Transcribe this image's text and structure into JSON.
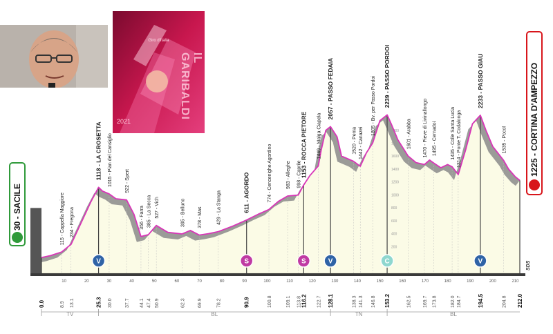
{
  "colors": {
    "profile_fill": "#fbfbe6",
    "profile_dark": "#8a8a8a",
    "route_line": "#d935b8",
    "start_green": "#2f9a3a",
    "finish_red": "#d8151b",
    "sprint_magenta": "#c03aa3",
    "gpm_navy": "#2f63a6",
    "cima_coppi": "#8fd7cf"
  },
  "start": {
    "altitude": "30",
    "name": "SACILE",
    "label": "30 - SACILE"
  },
  "finish": {
    "altitude": "1225",
    "name": "CORTINA D'AMPEZZO",
    "label": "1225 - CORTINA D'AMPEZZO"
  },
  "climb_labels": [
    {
      "text": "115 - Cappella Maggiore",
      "bold": false,
      "km": 8.9
    },
    {
      "text": "234 - Fregona",
      "bold": false,
      "km": 13.1
    },
    {
      "text": "1118 - LA CROSETTA",
      "bold": true,
      "km": 25.3
    },
    {
      "text": "1015 - Pian del Cansiglio",
      "bold": false,
      "km": 30.0
    },
    {
      "text": "922 - Spert",
      "bold": false,
      "km": 37.7
    },
    {
      "text": "356 - Farra",
      "bold": false,
      "km": 44.1
    },
    {
      "text": "385 - La Secca",
      "bold": false,
      "km": 47.4
    },
    {
      "text": "527 - Vich",
      "bold": false,
      "km": 50.9
    },
    {
      "text": "395 - Belluno",
      "bold": false,
      "km": 62.3
    },
    {
      "text": "378 - Mas",
      "bold": false,
      "km": 69.9
    },
    {
      "text": "429 - La Stanga",
      "bold": false,
      "km": 78.2
    },
    {
      "text": "611 - AGORDO",
      "bold": true,
      "km": 90.9
    },
    {
      "text": "774 - Cencenighe Agordino",
      "bold": false,
      "km": 100.8
    },
    {
      "text": "983 - Alleghe",
      "bold": false,
      "km": 109.1
    },
    {
      "text": "998 - Caprile",
      "bold": false,
      "km": 113.8
    },
    {
      "text": "1153 - ROCCA PIETORE",
      "bold": true,
      "km": 116.2
    },
    {
      "text": "1449 - Malga Ciapela",
      "bold": false,
      "km": 122.7
    },
    {
      "text": "2057 - PASSO FEDAIA",
      "bold": true,
      "km": 128.1
    },
    {
      "text": "1520 - Penia",
      "bold": false,
      "km": 138.3
    },
    {
      "text": "1442 - Canazei",
      "bold": false,
      "km": 141.3
    },
    {
      "text": "1805 - Bv. per Passo Pordoi",
      "bold": false,
      "km": 146.8
    },
    {
      "text": "2239 - PASSO PORDOI",
      "bold": true,
      "km": 153.2
    },
    {
      "text": "1601 - Arabba",
      "bold": false,
      "km": 162.5
    },
    {
      "text": "1470 - Pieve di Livinallongo",
      "bold": false,
      "km": 169.7
    },
    {
      "text": "1495 - Cernadoi",
      "bold": false,
      "km": 173.8
    },
    {
      "text": "1435 - Colle Santa Lucia",
      "bold": false,
      "km": 182.0
    },
    {
      "text": "1314 - Ponte T. Codalonga",
      "bold": false,
      "km": 184.7
    },
    {
      "text": "2233 - PASSO GIAU",
      "bold": true,
      "km": 194.5
    },
    {
      "text": "1535 - Pocol",
      "bold": false,
      "km": 204.8
    }
  ],
  "km_markers": [
    {
      "text": "0.0",
      "bold": true,
      "km": 0.0
    },
    {
      "text": "8.9",
      "bold": false,
      "km": 8.9
    },
    {
      "text": "13.1",
      "bold": false,
      "km": 13.1
    },
    {
      "text": "25.3",
      "bold": true,
      "km": 25.3
    },
    {
      "text": "30.0",
      "bold": false,
      "km": 30.0
    },
    {
      "text": "37.7",
      "bold": false,
      "km": 37.7
    },
    {
      "text": "44.1",
      "bold": false,
      "km": 44.1
    },
    {
      "text": "47.4",
      "bold": false,
      "km": 47.4
    },
    {
      "text": "50.9",
      "bold": false,
      "km": 50.9
    },
    {
      "text": "62.3",
      "bold": false,
      "km": 62.3
    },
    {
      "text": "69.9",
      "bold": false,
      "km": 69.9
    },
    {
      "text": "78.2",
      "bold": false,
      "km": 78.2
    },
    {
      "text": "90.9",
      "bold": true,
      "km": 90.9
    },
    {
      "text": "100.8",
      "bold": false,
      "km": 100.8
    },
    {
      "text": "109.1",
      "bold": false,
      "km": 109.1
    },
    {
      "text": "113.8",
      "bold": false,
      "km": 113.8
    },
    {
      "text": "116.2",
      "bold": true,
      "km": 116.2
    },
    {
      "text": "122.7",
      "bold": false,
      "km": 122.7
    },
    {
      "text": "128.1",
      "bold": true,
      "km": 128.1
    },
    {
      "text": "138.3",
      "bold": false,
      "km": 138.3
    },
    {
      "text": "141.3",
      "bold": false,
      "km": 141.3
    },
    {
      "text": "146.8",
      "bold": false,
      "km": 146.8
    },
    {
      "text": "153.2",
      "bold": true,
      "km": 153.2
    },
    {
      "text": "162.5",
      "bold": false,
      "km": 162.5
    },
    {
      "text": "169.7",
      "bold": false,
      "km": 169.7
    },
    {
      "text": "173.8",
      "bold": false,
      "km": 173.8
    },
    {
      "text": "182.0",
      "bold": false,
      "km": 182.0
    },
    {
      "text": "184.7",
      "bold": false,
      "km": 184.7
    },
    {
      "text": "194.5",
      "bold": true,
      "km": 194.5
    },
    {
      "text": "204.8",
      "bold": false,
      "km": 204.8
    },
    {
      "text": "212.0",
      "bold": true,
      "km": 212.0
    }
  ],
  "distance_scale": [
    "10",
    "20",
    "30",
    "40",
    "50",
    "60",
    "70",
    "80",
    "90",
    "100",
    "110",
    "120",
    "130",
    "140",
    "150",
    "160",
    "170",
    "180",
    "190",
    "200",
    "210"
  ],
  "altitude_scale": [
    "2000",
    "1800",
    "1600",
    "1400",
    "1200",
    "1000",
    "800",
    "600",
    "400",
    "200"
  ],
  "symbols": [
    {
      "type": "gpm",
      "letter": "V",
      "km": 25.3
    },
    {
      "type": "sprint",
      "letter": "S",
      "km": 90.9
    },
    {
      "type": "sprint",
      "letter": "S",
      "km": 116.2
    },
    {
      "type": "gpm",
      "letter": "V",
      "km": 128.1
    },
    {
      "type": "cima_coppi",
      "letter": "C",
      "km": 153.2
    },
    {
      "type": "gpm",
      "letter": "V",
      "km": 194.5
    }
  ],
  "regions": [
    {
      "code": "TV",
      "from_km": 0,
      "to_km": 25.3
    },
    {
      "code": "BL",
      "from_km": 25.3,
      "to_km": 128.1
    },
    {
      "code": "TN",
      "from_km": 128.1,
      "to_km": 153.2
    },
    {
      "code": "BL",
      "from_km": 153.2,
      "to_km": 212.0
    }
  ],
  "sds_label": "SDS",
  "poster": {
    "brand": "Giro d'Italia",
    "title": "IL GARIBALDI",
    "year": "2021"
  },
  "profile": [
    [
      0,
      30
    ],
    [
      4,
      60
    ],
    [
      8.9,
      115
    ],
    [
      13.1,
      234
    ],
    [
      18,
      600
    ],
    [
      22,
      900
    ],
    [
      25.3,
      1118
    ],
    [
      27,
      1060
    ],
    [
      30,
      1015
    ],
    [
      33,
      940
    ],
    [
      37.7,
      922
    ],
    [
      41,
      700
    ],
    [
      44.1,
      356
    ],
    [
      47.4,
      385
    ],
    [
      50.9,
      527
    ],
    [
      56,
      420
    ],
    [
      62.3,
      395
    ],
    [
      66,
      450
    ],
    [
      69.9,
      378
    ],
    [
      74,
      400
    ],
    [
      78.2,
      429
    ],
    [
      85,
      520
    ],
    [
      90.9,
      611
    ],
    [
      96,
      700
    ],
    [
      100.8,
      774
    ],
    [
      105,
      900
    ],
    [
      109.1,
      983
    ],
    [
      113.8,
      998
    ],
    [
      116.2,
      1153
    ],
    [
      119,
      1300
    ],
    [
      122.7,
      1449
    ],
    [
      124,
      1700
    ],
    [
      126,
      2000
    ],
    [
      128.1,
      2057
    ],
    [
      131,
      1900
    ],
    [
      133,
      1600
    ],
    [
      138.3,
      1520
    ],
    [
      141.3,
      1442
    ],
    [
      144,
      1650
    ],
    [
      146.8,
      1805
    ],
    [
      150,
      2150
    ],
    [
      153.2,
      2239
    ],
    [
      155,
      2100
    ],
    [
      158,
      1850
    ],
    [
      162.5,
      1601
    ],
    [
      166,
      1500
    ],
    [
      169.7,
      1470
    ],
    [
      172,
      1540
    ],
    [
      173.8,
      1495
    ],
    [
      177,
      1420
    ],
    [
      180,
      1470
    ],
    [
      182,
      1435
    ],
    [
      184.7,
      1314
    ],
    [
      188,
      1700
    ],
    [
      191,
      2100
    ],
    [
      194.5,
      2233
    ],
    [
      197,
      2000
    ],
    [
      200,
      1750
    ],
    [
      204.8,
      1535
    ],
    [
      207,
      1400
    ],
    [
      210,
      1280
    ],
    [
      212,
      1225
    ]
  ]
}
